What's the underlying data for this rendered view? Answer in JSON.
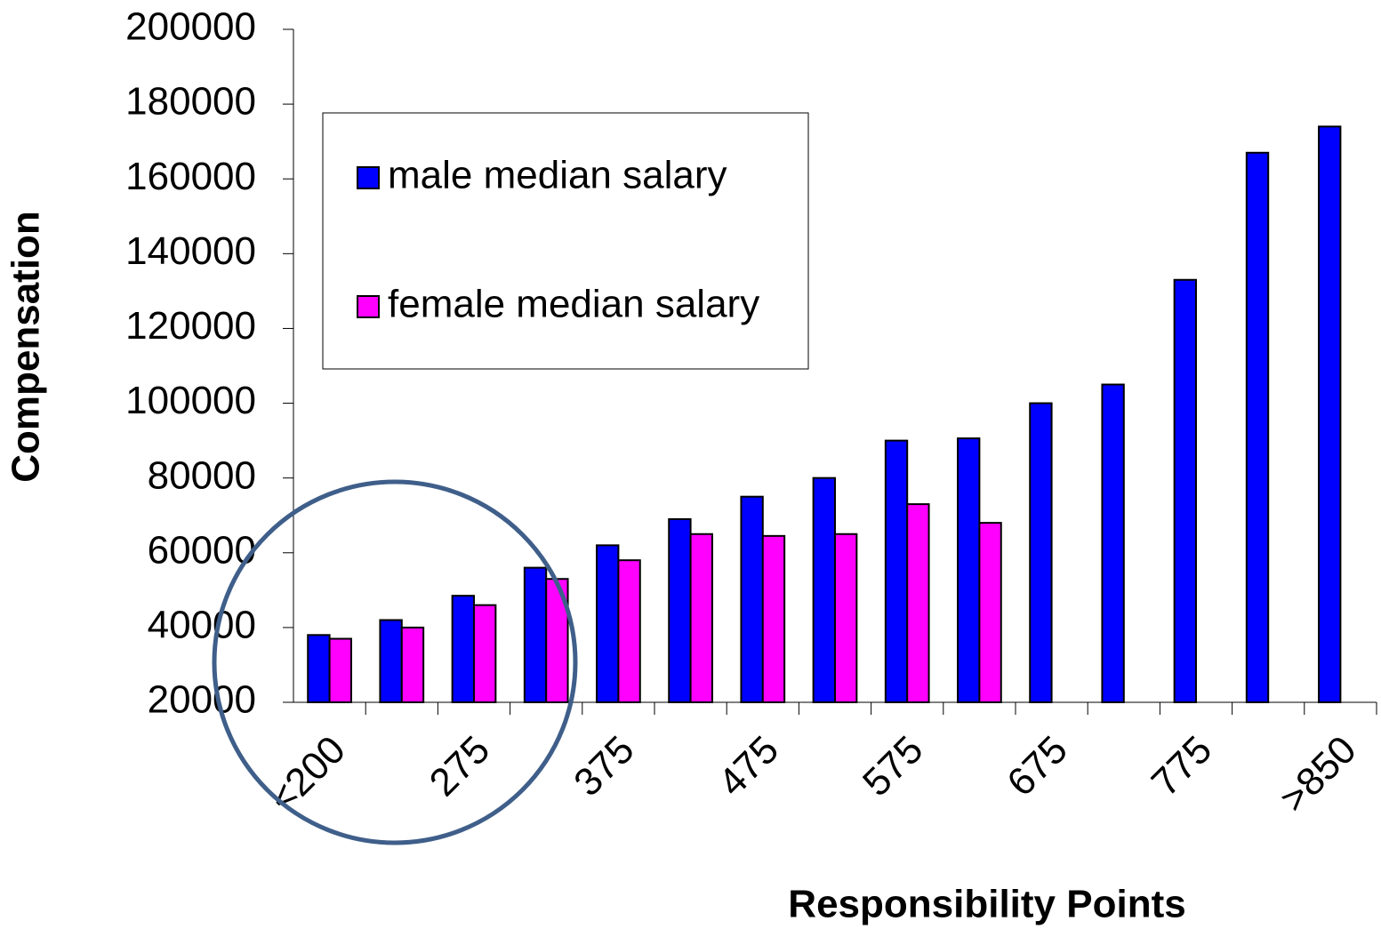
{
  "chart_data": {
    "type": "bar",
    "xlabel": "Responsibility Points",
    "ylabel": "Compensation",
    "categories": [
      "<200",
      null,
      "275",
      null,
      "375",
      null,
      "475",
      null,
      "575",
      null,
      "675",
      null,
      "775",
      null,
      ">850"
    ],
    "series": [
      {
        "name": "male median salary",
        "color": "#0000ff",
        "values": [
          38000,
          42000,
          48500,
          56000,
          62000,
          69000,
          75000,
          80000,
          90000,
          90600,
          100000,
          105000,
          133000,
          167000,
          174000
        ]
      },
      {
        "name": "female median salary",
        "color": "#ff00ff",
        "values": [
          37000,
          40000,
          46000,
          53000,
          58000,
          65000,
          64500,
          65000,
          73000,
          68000,
          null,
          null,
          null,
          null,
          null
        ]
      }
    ],
    "ylim": [
      20000,
      200000
    ],
    "yticks": [
      20000,
      40000,
      60000,
      80000,
      100000,
      120000,
      140000,
      160000,
      180000,
      200000
    ],
    "legend": "upper left"
  }
}
